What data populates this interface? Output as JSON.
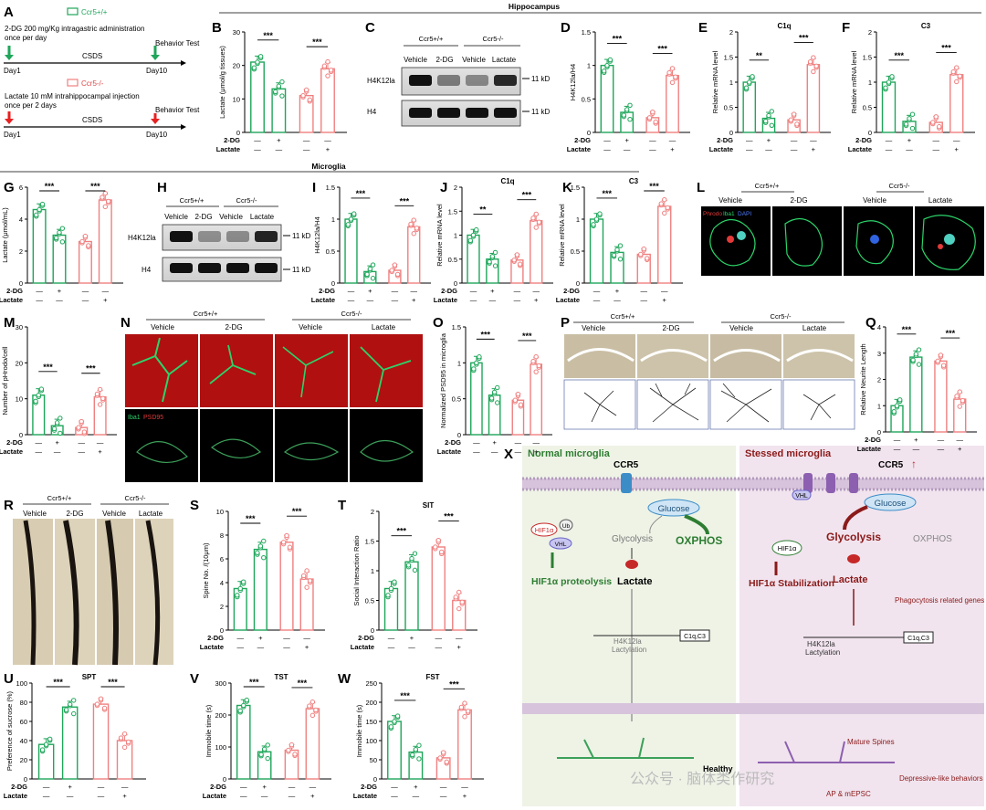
{
  "colors": {
    "green": "#1ea65a",
    "pink": "#f08080",
    "dark_red": "#8b1a1a",
    "dark_green": "#2e7d32"
  },
  "labels": {
    "sig3": "***",
    "sig2": "**",
    "drug_row": "2-DG",
    "lac_row": "Lactate",
    "plus": "+",
    "minus": "—",
    "wt": "Ccr5+/+",
    "ko": "Ccr5-/-"
  },
  "headers": {
    "hippocampus": "Hippocampus",
    "microglia": "Microglia"
  },
  "panel_a": {
    "letter": "A",
    "wt_legend": "Ccr5+/+",
    "ko_legend": "Ccr5-/-",
    "wt_line1": "2-DG 200 mg/Kg intragastric administration",
    "wt_line2": "once per day",
    "ko_line1": "Lactate 10 mM  intrahippocampal injection",
    "ko_line2": "once per 2 days",
    "csds": "CSDS",
    "behavior": "Behavior Test",
    "day1": "Day1",
    "day10": "Day10"
  },
  "blots": {
    "c": {
      "letter": "C",
      "lanes": [
        "Vehicle",
        "2-DG",
        "Vehicle",
        "Lactate"
      ],
      "groups": [
        "Ccr5+/+",
        "Ccr5-/-"
      ],
      "rows": [
        "H4K12la",
        "H4"
      ],
      "size": "11 kD"
    },
    "h": {
      "letter": "H",
      "lanes": [
        "Vehicle",
        "2-DG",
        "Vehicle",
        "Lactate"
      ],
      "groups": [
        "Ccr5+/+",
        "Ccr5-/-"
      ],
      "rows": [
        "H4K12la",
        "H4"
      ],
      "size": "11 kD"
    }
  },
  "panel_l": {
    "letter": "L",
    "groups": [
      "Ccr5+/+",
      "Ccr5-/-"
    ],
    "lanes": [
      "Vehicle",
      "2-DG",
      "Vehicle",
      "Lactate"
    ],
    "stain": [
      "Phrodo",
      "Iba1",
      "DAPI"
    ]
  },
  "panel_n": {
    "letter": "N",
    "groups": [
      "Ccr5+/+",
      "Ccr5-/-"
    ],
    "lanes": [
      "Vehicle",
      "2-DG",
      "Vehicle",
      "Lactate"
    ],
    "stain": [
      "Iba1",
      "PSD95"
    ]
  },
  "panel_p": {
    "letter": "P",
    "groups": [
      "Ccr5+/+",
      "Ccr5-/-"
    ],
    "lanes": [
      "Vehicle",
      "2-DG",
      "Vehicle",
      "Lactate"
    ]
  },
  "panel_r": {
    "letter": "R",
    "groups": [
      "Ccr5+/+",
      "Ccr5-/-"
    ],
    "lanes": [
      "Vehicle",
      "2-DG",
      "Vehicle",
      "Lactate"
    ]
  },
  "chart_data": [
    {
      "id": "B",
      "type": "bar",
      "title": "",
      "ylabel": "Lactate (μmol/g tissues)",
      "ylim": [
        0,
        30
      ],
      "yticks": [
        0,
        10,
        20,
        30
      ],
      "categories": [
        "Ccr5+/+ Vehicle",
        "Ccr5+/+ 2-DG",
        "Ccr5-/- Vehicle",
        "Ccr5-/- Lactate"
      ],
      "values": [
        21,
        13,
        11,
        19
      ],
      "sig": [
        "***",
        "***"
      ]
    },
    {
      "id": "D",
      "type": "bar",
      "title": "",
      "ylabel": "H4K12la/H4",
      "ylim": [
        0,
        1.5
      ],
      "yticks": [
        0,
        0.5,
        1.0,
        1.5
      ],
      "categories": [
        "Ccr5+/+ Vehicle",
        "Ccr5+/+ 2-DG",
        "Ccr5-/- Vehicle",
        "Ccr5-/- Lactate"
      ],
      "values": [
        1.0,
        0.3,
        0.22,
        0.85
      ],
      "sig": [
        "***",
        "***"
      ]
    },
    {
      "id": "E",
      "type": "bar",
      "title": "C1q",
      "ylabel": "Relative mRNA level",
      "ylim": [
        0,
        2.0
      ],
      "yticks": [
        0,
        0.5,
        1.0,
        1.5,
        2.0
      ],
      "categories": [
        "Ccr5+/+ Vehicle",
        "Ccr5+/+ 2-DG",
        "Ccr5-/- Vehicle",
        "Ccr5-/- Lactate"
      ],
      "values": [
        1.0,
        0.28,
        0.25,
        1.35
      ],
      "sig": [
        "**",
        "***"
      ]
    },
    {
      "id": "F",
      "type": "bar",
      "title": "C3",
      "ylabel": "Relative mRNA level",
      "ylim": [
        0,
        2.0
      ],
      "yticks": [
        0,
        0.5,
        1.0,
        1.5,
        2.0
      ],
      "categories": [
        "Ccr5+/+ Vehicle",
        "Ccr5+/+ 2-DG",
        "Ccr5-/- Vehicle",
        "Ccr5-/- Lactate"
      ],
      "values": [
        1.0,
        0.22,
        0.2,
        1.15
      ],
      "sig": [
        "***",
        "***"
      ]
    },
    {
      "id": "G",
      "type": "bar",
      "title": "",
      "ylabel": "Lactate (μmol/mL)",
      "ylim": [
        0,
        6
      ],
      "yticks": [
        0,
        2,
        4,
        6
      ],
      "categories": [
        "Ccr5+/+ Vehicle",
        "Ccr5+/+ 2-DG",
        "Ccr5-/- Vehicle",
        "Ccr5-/- Lactate"
      ],
      "values": [
        4.6,
        3.0,
        2.6,
        5.2
      ],
      "sig": [
        "***",
        "***"
      ]
    },
    {
      "id": "I",
      "type": "bar",
      "title": "",
      "ylabel": "H4K12la/H4",
      "ylim": [
        0,
        1.5
      ],
      "yticks": [
        0,
        0.5,
        1.0,
        1.5
      ],
      "categories": [
        "Ccr5+/+ Vehicle",
        "Ccr5+/+ 2-DG",
        "Ccr5-/- Vehicle",
        "Ccr5-/- Lactate"
      ],
      "values": [
        1.0,
        0.18,
        0.2,
        0.88
      ],
      "sig": [
        "***",
        "***"
      ]
    },
    {
      "id": "J",
      "type": "bar",
      "title": "C1q",
      "ylabel": "Relative mRNA level",
      "ylim": [
        0,
        2.0
      ],
      "yticks": [
        0,
        0.5,
        1.0,
        1.5,
        2.0
      ],
      "categories": [
        "Ccr5+/+ Vehicle",
        "Ccr5+/+ 2-DG",
        "Ccr5-/- Vehicle",
        "Ccr5-/- Lactate"
      ],
      "values": [
        1.0,
        0.5,
        0.48,
        1.3
      ],
      "sig": [
        "**",
        "***"
      ]
    },
    {
      "id": "K",
      "type": "bar",
      "title": "C3",
      "ylabel": "Relative mRNA level",
      "ylim": [
        0,
        1.5
      ],
      "yticks": [
        0,
        0.5,
        1.0,
        1.5
      ],
      "categories": [
        "Ccr5+/+ Vehicle",
        "Ccr5+/+ 2-DG",
        "Ccr5-/- Vehicle",
        "Ccr5-/- Lactate"
      ],
      "values": [
        1.0,
        0.48,
        0.45,
        1.2
      ],
      "sig": [
        "***",
        "***"
      ]
    },
    {
      "id": "M",
      "type": "bar",
      "title": "",
      "ylabel": "Number of pHrodo/cell",
      "ylim": [
        0,
        30
      ],
      "yticks": [
        0,
        10,
        20,
        30
      ],
      "categories": [
        "Ccr5+/+ Vehicle",
        "Ccr5+/+ 2-DG",
        "Ccr5-/- Vehicle",
        "Ccr5-/- Lactate"
      ],
      "values": [
        11,
        2.5,
        2,
        10.5
      ],
      "sig": [
        "***",
        "***"
      ]
    },
    {
      "id": "O",
      "type": "bar",
      "title": "",
      "ylabel": "Normalized PSD95 in microglia",
      "ylim": [
        0,
        1.5
      ],
      "yticks": [
        0,
        0.5,
        1.0,
        1.5
      ],
      "categories": [
        "Ccr5+/+ Vehicle",
        "Ccr5+/+ 2-DG",
        "Ccr5-/- Vehicle",
        "Ccr5-/- Lactate"
      ],
      "values": [
        1.0,
        0.55,
        0.48,
        0.98
      ],
      "sig": [
        "***",
        "***"
      ]
    },
    {
      "id": "Q",
      "type": "bar",
      "title": "",
      "ylabel": "Relative Neurite Length",
      "ylim": [
        0,
        4
      ],
      "yticks": [
        0,
        1,
        2,
        3,
        4
      ],
      "categories": [
        "Ccr5+/+ Vehicle",
        "Ccr5+/+ 2-DG",
        "Ccr5-/- Vehicle",
        "Ccr5-/- Lactate"
      ],
      "values": [
        1.0,
        2.85,
        2.7,
        1.25
      ],
      "sig": [
        "***",
        "***"
      ]
    },
    {
      "id": "S",
      "type": "bar",
      "title": "",
      "ylabel": "Spine No. /(10μm)",
      "ylim": [
        0,
        10
      ],
      "yticks": [
        0,
        2,
        4,
        6,
        8,
        10
      ],
      "categories": [
        "Ccr5+/+ Vehicle",
        "Ccr5+/+ 2-DG",
        "Ccr5-/- Vehicle",
        "Ccr5-/- Lactate"
      ],
      "values": [
        3.5,
        6.8,
        7.4,
        4.3
      ],
      "sig": [
        "***",
        "***"
      ]
    },
    {
      "id": "T",
      "type": "bar",
      "title": "SIT",
      "ylabel": "Social Interaction Ratio",
      "ylim": [
        0,
        2.0
      ],
      "yticks": [
        0,
        0.5,
        1.0,
        1.5,
        2.0
      ],
      "categories": [
        "Ccr5+/+ Vehicle",
        "Ccr5+/+ 2-DG",
        "Ccr5-/- Vehicle",
        "Ccr5-/- Lactate"
      ],
      "values": [
        0.7,
        1.15,
        1.4,
        0.5
      ],
      "sig": [
        "***",
        "***"
      ]
    },
    {
      "id": "U",
      "type": "bar",
      "title": "SPT",
      "ylabel": "Preference of sucrose (%)",
      "ylim": [
        0,
        100
      ],
      "yticks": [
        0,
        20,
        40,
        60,
        80,
        100
      ],
      "categories": [
        "Ccr5+/+ Vehicle",
        "Ccr5+/+ 2-DG",
        "Ccr5-/- Vehicle",
        "Ccr5-/- Lactate"
      ],
      "values": [
        36,
        75,
        78,
        40
      ],
      "sig": [
        "***",
        "***"
      ]
    },
    {
      "id": "V",
      "type": "bar",
      "title": "TST",
      "ylabel": "Immobile time (s)",
      "ylim": [
        0,
        300
      ],
      "yticks": [
        0,
        100,
        200,
        300
      ],
      "categories": [
        "Ccr5+/+ Vehicle",
        "Ccr5+/+ 2-DG",
        "Ccr5-/- Vehicle",
        "Ccr5-/- Lactate"
      ],
      "values": [
        230,
        85,
        90,
        220
      ],
      "sig": [
        "***",
        "***"
      ]
    },
    {
      "id": "W",
      "type": "bar",
      "title": "FST",
      "ylabel": "Immobile time (s)",
      "ylim": [
        0,
        250
      ],
      "yticks": [
        0,
        50,
        100,
        150,
        200,
        250
      ],
      "categories": [
        "Ccr5+/+ Vehicle",
        "Ccr5+/+ 2-DG",
        "Ccr5-/- Vehicle",
        "Ccr5-/- Lactate"
      ],
      "values": [
        150,
        70,
        55,
        180
      ],
      "sig": [
        "***",
        "***"
      ]
    }
  ],
  "panel_x": {
    "letter": "X",
    "normal_title": "Normal microglia",
    "stressed_title": "Stessed microglia",
    "ccr5": "CCR5",
    "up_arrow": "↑",
    "glucose": "Glucose",
    "glycolysis": "Glycolysis",
    "oxphos": "OXPHOS",
    "hif": "HIF1α",
    "ub": "Ub",
    "vhl": "VHL",
    "proteolysis": "HIF1α proteolysis",
    "stabilization": "HIF1α Stabilization",
    "lactate": "Lactate",
    "h4": "H4K12la",
    "lactylation": "Lactylation",
    "genes": "C1q,C3",
    "phago": "Phagocytosis related genes",
    "healthy": "Healthy",
    "mature": "Mature Spines",
    "ap": "AP & mEPSC",
    "depress": "Depressive-like behaviors"
  },
  "watermark": "公众号 · 脑体类作研究"
}
